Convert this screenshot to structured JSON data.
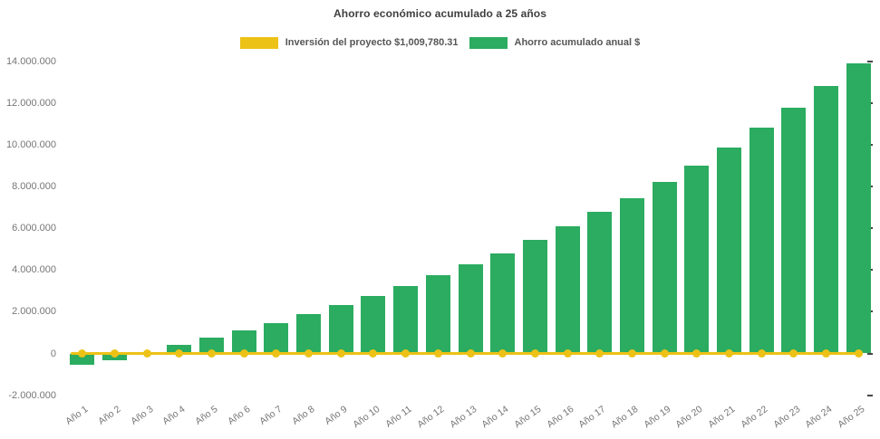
{
  "chart_data": {
    "type": "bar",
    "title": "Ahorro económico acumulado a 25 años",
    "legend_position": "top",
    "grid": false,
    "categories": [
      "Año 1",
      "Año 2",
      "Año 3",
      "Año 4",
      "Año 5",
      "Año 6",
      "Año 7",
      "Año 8",
      "Año 9",
      "Año 10",
      "Año 11",
      "Año 12",
      "Año 13",
      "Año 14",
      "Año 15",
      "Año 16",
      "Año 17",
      "Año 18",
      "Año 19",
      "Año 20",
      "Año 21",
      "Año 22",
      "Año 23",
      "Año 24",
      "Año 25"
    ],
    "series": [
      {
        "name": "Inversión del proyecto $1,009,780.31",
        "type": "line",
        "color": "#edc216",
        "marker": "circle",
        "values": [
          0,
          0,
          0,
          0,
          0,
          0,
          0,
          0,
          0,
          0,
          0,
          0,
          0,
          0,
          0,
          0,
          0,
          0,
          0,
          0,
          0,
          0,
          0,
          0,
          0
        ]
      },
      {
        "name": "Ahorro acumulado anual $",
        "type": "bar",
        "color": "#2bac60",
        "values": [
          -550000,
          -330000,
          -60000,
          430000,
          770000,
          1110000,
          1450000,
          1870000,
          2310000,
          2740000,
          3220000,
          3750000,
          4290000,
          4810000,
          5460000,
          6100000,
          6780000,
          7450000,
          8230000,
          9020000,
          9880000,
          10840000,
          11770000,
          12820000,
          13900000
        ]
      }
    ],
    "xlabel": "",
    "ylabel": "",
    "ylim": [
      -2000000,
      14000000
    ],
    "ytick_step": 2000000,
    "yticks": [
      {
        "value": 14000000,
        "label": "14.000.000"
      },
      {
        "value": 12000000,
        "label": "12.000.000"
      },
      {
        "value": 10000000,
        "label": "10.000.000"
      },
      {
        "value": 8000000,
        "label": "8.000.000"
      },
      {
        "value": 6000000,
        "label": "6.000.000"
      },
      {
        "value": 4000000,
        "label": "4.000.000"
      },
      {
        "value": 2000000,
        "label": "2.000.000"
      },
      {
        "value": 0,
        "label": "0"
      },
      {
        "value": -2000000,
        "label": "-2.000.000"
      }
    ]
  },
  "colors": {
    "investment_line": "#edc216",
    "savings_bar": "#2bac60",
    "title_text": "#3f3f3f",
    "legend_text": "#565656",
    "axis_text": "#757575",
    "background": "#ffffff"
  }
}
